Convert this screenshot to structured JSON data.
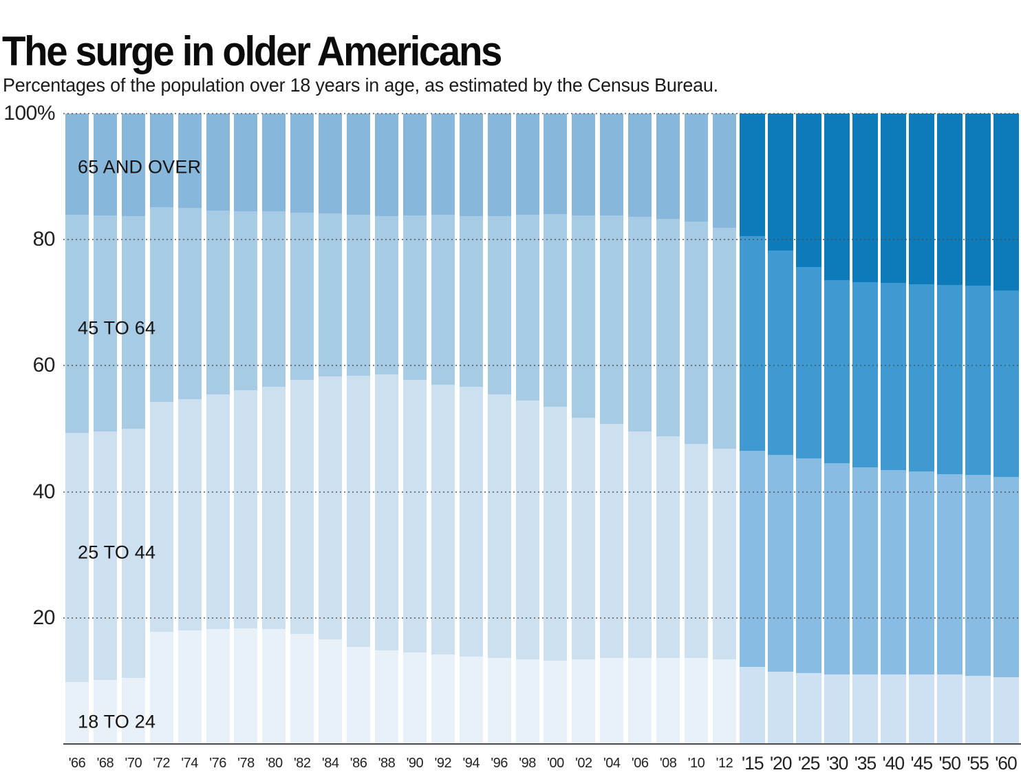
{
  "header": {
    "title": "The surge in older Americans",
    "subtitle": "Percentages of the population over 18 years in age, as estimated by the Census Bureau."
  },
  "chart_data": {
    "type": "bar",
    "stacked": true,
    "normalized_to": 100,
    "unit": "%",
    "source_note": "Census Bureau estimates; bars from 2015 onward are projections shown in darker blue",
    "categories": [
      "'66",
      "'68",
      "'70",
      "'72",
      "'74",
      "'76",
      "'78",
      "'80",
      "'82",
      "'84",
      "'86",
      "'88",
      "'90",
      "'92",
      "'94",
      "'96",
      "'98",
      "'00",
      "'02",
      "'04",
      "'06",
      "'08",
      "'10",
      "'12",
      "'15",
      "'20",
      "'25",
      "'30",
      "'35",
      "'40",
      "'45",
      "'50",
      "'55",
      "'60"
    ],
    "projection_start_index": 24,
    "series": [
      {
        "name": "18 TO 24",
        "color_historical": "#e8f0f8",
        "color_projection": "#cee1f2",
        "values": [
          9.8,
          10.2,
          10.5,
          17.8,
          18.0,
          18.2,
          18.3,
          18.2,
          17.5,
          16.6,
          15.4,
          14.9,
          14.5,
          14.2,
          13.9,
          13.6,
          13.4,
          13.2,
          13.4,
          13.6,
          13.7,
          13.7,
          13.6,
          13.4,
          12.2,
          11.5,
          11.2,
          11.0,
          11.0,
          11.0,
          11.0,
          11.0,
          10.8,
          10.6
        ]
      },
      {
        "name": "25 TO 44",
        "color_historical": "#cde0f0",
        "color_projection": "#88bce2",
        "values": [
          39.6,
          39.4,
          39.5,
          36.5,
          36.7,
          37.3,
          37.8,
          38.5,
          40.3,
          41.7,
          43.0,
          43.7,
          43.2,
          42.8,
          42.8,
          41.9,
          41.1,
          40.3,
          38.4,
          37.2,
          35.9,
          35.1,
          34.0,
          33.4,
          34.3,
          34.3,
          34.1,
          33.5,
          32.9,
          32.5,
          32.2,
          31.8,
          31.9,
          31.8
        ]
      },
      {
        "name": "45 TO 64",
        "color_historical": "#a7cbe5",
        "color_projection": "#3f9ad2",
        "values": [
          34.5,
          34.2,
          33.7,
          30.9,
          30.3,
          29.1,
          28.4,
          27.8,
          26.5,
          25.9,
          25.5,
          25.1,
          26.1,
          27.0,
          27.0,
          28.2,
          29.4,
          30.6,
          32.0,
          33.0,
          34.0,
          34.5,
          35.3,
          35.1,
          34.1,
          32.5,
          30.4,
          29.1,
          29.4,
          29.6,
          29.7,
          30.0,
          30.0,
          29.5
        ]
      },
      {
        "name": "65 AND OVER",
        "color_historical": "#87b7da",
        "color_projection": "#0d7ab9",
        "values": [
          16.1,
          16.2,
          16.3,
          14.8,
          15.0,
          15.4,
          15.5,
          15.5,
          15.7,
          15.8,
          16.1,
          16.3,
          16.2,
          16.0,
          16.3,
          16.3,
          16.1,
          15.9,
          16.2,
          16.2,
          16.4,
          16.7,
          17.1,
          18.1,
          19.4,
          21.7,
          24.3,
          26.4,
          26.7,
          26.9,
          27.1,
          27.2,
          27.3,
          28.1
        ]
      }
    ],
    "y_axis": {
      "tick_values": [
        20,
        40,
        60,
        80,
        100
      ],
      "tick_labels": [
        "20",
        "40",
        "60",
        "80",
        "100%"
      ],
      "max": 100,
      "grid": "dotted"
    },
    "segment_labels": [
      {
        "text": "18 TO 24",
        "y_percent": 3.5
      },
      {
        "text": "25 TO 44",
        "y_percent": 30.4
      },
      {
        "text": "45 TO 64",
        "y_percent": 65.9
      },
      {
        "text": "65 AND OVER",
        "y_percent": 91.5
      }
    ]
  }
}
